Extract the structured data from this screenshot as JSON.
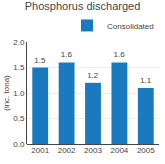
{
  "chart_data": {
    "type": "bar",
    "title": "Phosphorus discharged",
    "ylabel": "(inc. tona)",
    "categories": [
      "2001",
      "2002",
      "2003",
      "2004",
      "2005"
    ],
    "series": [
      {
        "name": "Consolidated",
        "color": "#1a7abf",
        "values": [
          1.5,
          1.6,
          1.2,
          1.6,
          1.1
        ]
      }
    ],
    "ylim": [
      0,
      2.0
    ],
    "yticks": [
      {
        "value": 0.0,
        "label": "0.0"
      },
      0.5,
      {
        "value": 1.0,
        "label": "1.0"
      },
      1.5,
      {
        "value": 2.0,
        "label": "2.0"
      }
    ],
    "grid": true,
    "legend": "upper right",
    "data_labels": true
  }
}
